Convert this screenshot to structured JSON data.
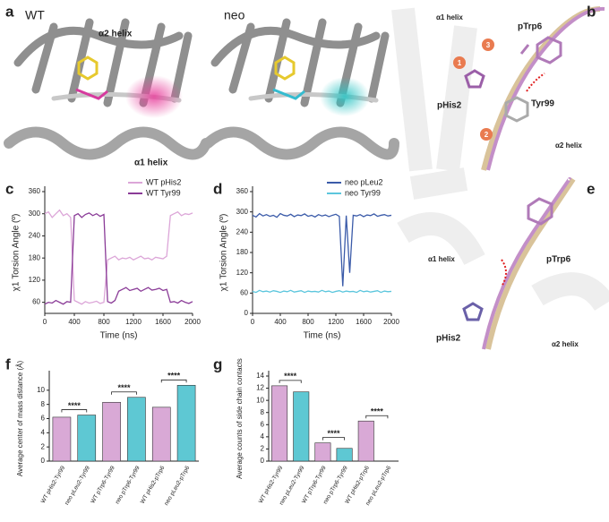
{
  "figure": {
    "panel_labels": [
      "a",
      "b",
      "c",
      "d",
      "e",
      "f",
      "g"
    ]
  },
  "panel_a": {
    "left_title": "WT",
    "right_title": "neo",
    "top_label": "α2 helix",
    "bottom_label": "α1 helix"
  },
  "panel_b": {
    "labels": [
      "α1 helix",
      "pTrp6",
      "pHis2",
      "Tyr99",
      "α2 helix"
    ],
    "steps": [
      "1",
      "2",
      "3"
    ]
  },
  "panel_e": {
    "labels": [
      "pTrp6",
      "α1 helix",
      "pHis2",
      "α2 helix"
    ]
  },
  "chart_data": [
    {
      "type": "line",
      "xlabel": "Time (ns)",
      "ylabel": "χ1 Torsion Angle (º)",
      "legend": "upper right",
      "x": [
        0,
        50,
        100,
        150,
        200,
        250,
        300,
        350,
        400,
        450,
        500,
        550,
        600,
        650,
        700,
        750,
        800,
        850,
        900,
        950,
        1000,
        1050,
        1100,
        1150,
        1200,
        1250,
        1300,
        1350,
        1400,
        1450,
        1500,
        1550,
        1600,
        1650,
        1700,
        1750,
        1800,
        1850,
        1900,
        1950,
        2000
      ],
      "series": [
        {
          "name": "WT pHis2",
          "color": "#dca6d8",
          "values": [
            300,
            305,
            290,
            300,
            310,
            295,
            300,
            290,
            65,
            60,
            55,
            62,
            58,
            60,
            63,
            57,
            60,
            175,
            180,
            185,
            175,
            180,
            178,
            182,
            175,
            180,
            185,
            178,
            180,
            175,
            182,
            180,
            178,
            185,
            295,
            300,
            305,
            295,
            300,
            298,
            302
          ]
        },
        {
          "name": "WT Tyr99",
          "color": "#8a3b97",
          "values": [
            55,
            60,
            58,
            65,
            60,
            55,
            62,
            60,
            295,
            300,
            290,
            298,
            302,
            295,
            300,
            293,
            298,
            62,
            58,
            65,
            90,
            95,
            100,
            92,
            95,
            98,
            90,
            95,
            100,
            93,
            95,
            98,
            92,
            95,
            60,
            62,
            58,
            65,
            60,
            57,
            62
          ]
        }
      ],
      "xlim": [
        0,
        2000
      ],
      "ylim": [
        30,
        360
      ],
      "xticks": [
        0,
        400,
        800,
        1200,
        1600,
        2000
      ],
      "yticks": [
        60,
        120,
        180,
        240,
        300,
        360
      ]
    },
    {
      "type": "line",
      "xlabel": "Time (ns)",
      "ylabel": "χ1 Torsion Angle (º)",
      "legend": "upper right",
      "x": [
        0,
        50,
        100,
        150,
        200,
        250,
        300,
        350,
        400,
        450,
        500,
        550,
        600,
        650,
        700,
        750,
        800,
        850,
        900,
        950,
        1000,
        1050,
        1100,
        1150,
        1200,
        1250,
        1300,
        1350,
        1400,
        1450,
        1500,
        1550,
        1600,
        1650,
        1700,
        1750,
        1800,
        1850,
        1900,
        1950,
        2000
      ],
      "series": [
        {
          "name": "neo pLeu2",
          "color": "#3b5ba9",
          "values": [
            290,
            285,
            295,
            288,
            292,
            287,
            290,
            284,
            295,
            290,
            288,
            293,
            286,
            291,
            289,
            294,
            287,
            290,
            285,
            292,
            288,
            291,
            286,
            290,
            293,
            287,
            80,
            289,
            120,
            290,
            288,
            292,
            286,
            291,
            289,
            294,
            287,
            290,
            292,
            288,
            290
          ]
        },
        {
          "name": "neo Tyr99",
          "color": "#5cc6dd",
          "values": [
            65,
            62,
            68,
            64,
            66,
            63,
            67,
            65,
            62,
            66,
            64,
            68,
            63,
            65,
            67,
            62,
            66,
            64,
            65,
            63,
            68,
            64,
            66,
            62,
            65,
            67,
            63,
            66,
            64,
            65,
            62,
            68,
            64,
            66,
            63,
            65,
            67,
            62,
            66,
            64,
            65
          ]
        }
      ],
      "xlim": [
        0,
        2000
      ],
      "ylim": [
        0,
        360
      ],
      "xticks": [
        0,
        400,
        800,
        1200,
        1600,
        2000
      ],
      "yticks": [
        0,
        60,
        120,
        180,
        240,
        300,
        360
      ]
    },
    {
      "type": "bar",
      "ylabel": "Average center of mass distance (Å)",
      "categories": [
        "WT pHis2-Tyr99",
        "neo pLeu2-Tyr99",
        "WT pTrp6-Tyr99",
        "neo pTrp6-Tyr99",
        "WT pHis2-pTrp6",
        "neo pLeu2-pTrp6"
      ],
      "values": [
        6.2,
        6.5,
        8.3,
        9.0,
        7.6,
        10.7
      ],
      "colors": [
        "#d9a9d6",
        "#5ec8d3",
        "#d9a9d6",
        "#5ec8d3",
        "#d9a9d6",
        "#5ec8d3"
      ],
      "ylim": [
        0,
        12
      ],
      "yticks": [
        0,
        2,
        4,
        6,
        8,
        10
      ],
      "annotations": [
        "****",
        "****",
        "****"
      ]
    },
    {
      "type": "bar",
      "ylabel": "Average counts of side chain contacts",
      "categories": [
        "WT pHis2-Tyr99",
        "neo pLeu2-Tyr99",
        "WT pTrp6-Tyr99",
        "neo pTrp6-Tyr99",
        "WT pHis2-pTrp6",
        "neo pLeu2-pTrp6"
      ],
      "values": [
        12.4,
        11.4,
        3.0,
        2.1,
        6.6,
        0
      ],
      "colors": [
        "#d9a9d6",
        "#5ec8d3",
        "#d9a9d6",
        "#5ec8d3",
        "#d9a9d6",
        "#5ec8d3"
      ],
      "ylim": [
        0,
        14
      ],
      "yticks": [
        0,
        2,
        4,
        6,
        8,
        10,
        12,
        14
      ],
      "annotations": [
        "****",
        "****",
        "****"
      ]
    }
  ]
}
